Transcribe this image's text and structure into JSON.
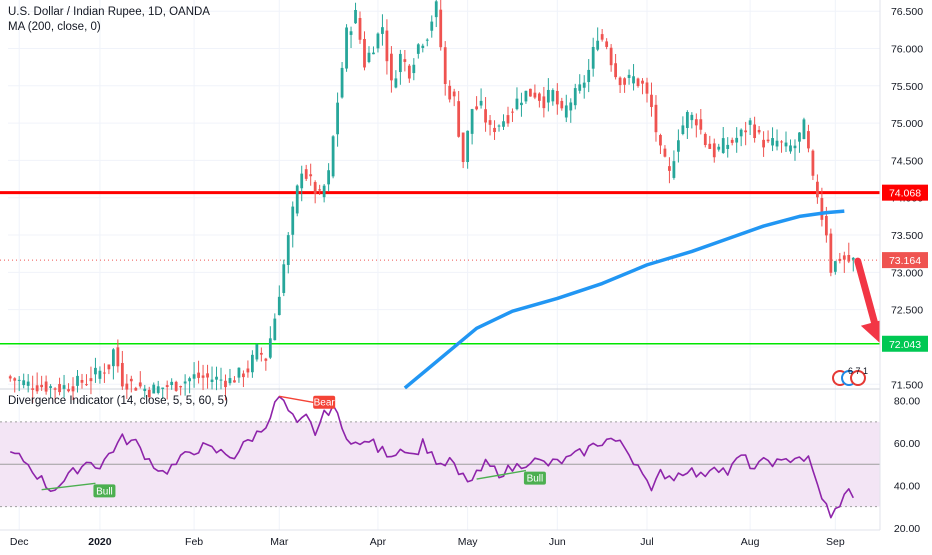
{
  "legend": {
    "symbol_line": "U.S. Dollar / Indian Rupee, 1D, OANDA",
    "ma_line": "MA (200, close, 0)",
    "indicator_line": "Divergence Indicator (14, close, 5, 5, 60, 5)"
  },
  "colors": {
    "bull": "#26a69a",
    "bear": "#ef5350",
    "ma": "#2196f3",
    "resistance": "#ff0000",
    "support": "#00e600",
    "rsi_line": "#8e24aa",
    "rsi_band": "#f3e5f5",
    "bull_tag": "#4caf50",
    "bear_tag": "#f44336",
    "arrow": "#f23645"
  },
  "chart_data": [
    {
      "type": "candlestick",
      "pane": "price",
      "ylim": [
        71.45,
        76.65
      ],
      "y_ticks": [
        "76.500",
        "76.000",
        "75.500",
        "75.000",
        "74.500",
        "74.000",
        "73.500",
        "73.000",
        "72.500",
        "72.000",
        "71.500"
      ],
      "x_labels": [
        {
          "label": "Dec",
          "bar": 2,
          "bold": false
        },
        {
          "label": "2020",
          "bar": 20,
          "bold": true
        },
        {
          "label": "Feb",
          "bar": 41,
          "bold": false
        },
        {
          "label": "Mar",
          "bar": 60,
          "bold": false
        },
        {
          "label": "Apr",
          "bar": 82,
          "bold": false
        },
        {
          "label": "May",
          "bar": 102,
          "bold": false
        },
        {
          "label": "Jun",
          "bar": 122,
          "bold": false
        },
        {
          "label": "Jul",
          "bar": 142,
          "bold": false
        },
        {
          "label": "Aug",
          "bar": 165,
          "bold": false
        },
        {
          "label": "Sep",
          "bar": 184,
          "bold": false
        }
      ],
      "bar_count": 190,
      "keypoints": [
        [
          0,
          71.6
        ],
        [
          5,
          71.5
        ],
        [
          12,
          71.45
        ],
        [
          18,
          71.55
        ],
        [
          23,
          71.75
        ],
        [
          24,
          71.95
        ],
        [
          26,
          71.55
        ],
        [
          32,
          71.42
        ],
        [
          38,
          71.5
        ],
        [
          42,
          71.6
        ],
        [
          50,
          71.55
        ],
        [
          54,
          71.7
        ],
        [
          56,
          71.95
        ],
        [
          58,
          71.85
        ],
        [
          60,
          72.4
        ],
        [
          62,
          73.1
        ],
        [
          64,
          73.8
        ],
        [
          66,
          74.4
        ],
        [
          68,
          74.2
        ],
        [
          70,
          74.0
        ],
        [
          72,
          74.3
        ],
        [
          74,
          75.3
        ],
        [
          76,
          76.2
        ],
        [
          78,
          76.45
        ],
        [
          80,
          75.8
        ],
        [
          82,
          76.05
        ],
        [
          84,
          76.3
        ],
        [
          86,
          75.5
        ],
        [
          88,
          75.9
        ],
        [
          90,
          75.7
        ],
        [
          92,
          76.05
        ],
        [
          94,
          76.2
        ],
        [
          95,
          76.4
        ],
        [
          96,
          76.55
        ],
        [
          98,
          75.5
        ],
        [
          100,
          75.3
        ],
        [
          102,
          74.5
        ],
        [
          104,
          75.2
        ],
        [
          106,
          75.2
        ],
        [
          108,
          74.9
        ],
        [
          110,
          75.0
        ],
        [
          112,
          75.1
        ],
        [
          114,
          75.3
        ],
        [
          116,
          75.4
        ],
        [
          118,
          75.4
        ],
        [
          120,
          75.3
        ],
        [
          122,
          75.4
        ],
        [
          124,
          75.1
        ],
        [
          126,
          75.3
        ],
        [
          128,
          75.45
        ],
        [
          130,
          75.7
        ],
        [
          132,
          76.2
        ],
        [
          134,
          76.05
        ],
        [
          136,
          75.65
        ],
        [
          138,
          75.55
        ],
        [
          140,
          75.6
        ],
        [
          142,
          75.5
        ],
        [
          144,
          75.2
        ],
        [
          146,
          74.6
        ],
        [
          148,
          74.3
        ],
        [
          150,
          74.85
        ],
        [
          152,
          75.1
        ],
        [
          154,
          75.05
        ],
        [
          156,
          74.75
        ],
        [
          158,
          74.6
        ],
        [
          160,
          74.7
        ],
        [
          162,
          74.75
        ],
        [
          164,
          74.85
        ],
        [
          166,
          75.0
        ],
        [
          168,
          74.8
        ],
        [
          170,
          74.7
        ],
        [
          172,
          74.75
        ],
        [
          174,
          74.65
        ],
        [
          176,
          74.7
        ],
        [
          178,
          74.95
        ],
        [
          179,
          74.6
        ],
        [
          180,
          74.2
        ],
        [
          181,
          74.05
        ],
        [
          182,
          73.75
        ],
        [
          183,
          73.55
        ],
        [
          184,
          73.05
        ],
        [
          186,
          73.2
        ],
        [
          188,
          73.15
        ]
      ],
      "moving_average": {
        "name": "MA (200, close, 0)",
        "points": [
          [
            88,
            71.45
          ],
          [
            93,
            71.7
          ],
          [
            98,
            71.95
          ],
          [
            104,
            72.25
          ],
          [
            112,
            72.48
          ],
          [
            122,
            72.65
          ],
          [
            132,
            72.85
          ],
          [
            142,
            73.1
          ],
          [
            152,
            73.28
          ],
          [
            160,
            73.45
          ],
          [
            168,
            73.62
          ],
          [
            176,
            73.75
          ],
          [
            182,
            73.8
          ],
          [
            186,
            73.82
          ]
        ]
      },
      "levels": [
        {
          "name": "resistance",
          "value": 74.068,
          "label": "74.068"
        },
        {
          "name": "last_price",
          "value": 73.164,
          "label": "73.164"
        },
        {
          "name": "support",
          "value": 72.043,
          "label": "72.043"
        }
      ],
      "projection_arrow": {
        "from": [
          189,
          73.15
        ],
        "to": [
          194,
          72.05
        ]
      },
      "event_flags_text": "6 7 1"
    },
    {
      "type": "line",
      "pane": "indicator",
      "ylim": [
        19,
        85
      ],
      "y_ticks": [
        "80.00",
        "60.00",
        "40.00",
        "20.00"
      ],
      "band": {
        "upper": 70,
        "lower": 30,
        "mid": 50
      },
      "keypoints": [
        [
          0,
          55
        ],
        [
          3,
          52
        ],
        [
          6,
          45
        ],
        [
          9,
          38
        ],
        [
          12,
          42
        ],
        [
          15,
          48
        ],
        [
          18,
          52
        ],
        [
          20,
          48
        ],
        [
          22,
          55
        ],
        [
          25,
          62
        ],
        [
          28,
          60
        ],
        [
          31,
          52
        ],
        [
          34,
          46
        ],
        [
          37,
          50
        ],
        [
          40,
          56
        ],
        [
          43,
          58
        ],
        [
          46,
          56
        ],
        [
          50,
          54
        ],
        [
          53,
          61
        ],
        [
          56,
          66
        ],
        [
          58,
          73
        ],
        [
          60,
          82
        ],
        [
          62,
          75
        ],
        [
          64,
          68
        ],
        [
          66,
          72
        ],
        [
          68,
          65
        ],
        [
          70,
          73
        ],
        [
          72,
          78
        ],
        [
          74,
          66
        ],
        [
          76,
          62
        ],
        [
          78,
          58
        ],
        [
          80,
          62
        ],
        [
          82,
          57
        ],
        [
          85,
          55
        ],
        [
          88,
          58
        ],
        [
          90,
          54
        ],
        [
          92,
          60
        ],
        [
          94,
          55
        ],
        [
          96,
          48
        ],
        [
          98,
          52
        ],
        [
          100,
          45
        ],
        [
          103,
          42
        ],
        [
          106,
          50
        ],
        [
          109,
          46
        ],
        [
          112,
          48
        ],
        [
          116,
          52
        ],
        [
          120,
          50
        ],
        [
          124,
          52
        ],
        [
          128,
          56
        ],
        [
          131,
          60
        ],
        [
          134,
          62
        ],
        [
          137,
          58
        ],
        [
          139,
          52
        ],
        [
          141,
          48
        ],
        [
          143,
          36
        ],
        [
          145,
          46
        ],
        [
          148,
          44
        ],
        [
          151,
          48
        ],
        [
          154,
          44
        ],
        [
          157,
          50
        ],
        [
          160,
          46
        ],
        [
          163,
          54
        ],
        [
          166,
          48
        ],
        [
          169,
          52
        ],
        [
          172,
          50
        ],
        [
          175,
          54
        ],
        [
          178,
          52
        ],
        [
          180,
          40
        ],
        [
          182,
          30
        ],
        [
          183,
          24
        ],
        [
          185,
          32
        ],
        [
          187,
          37
        ],
        [
          189,
          35
        ]
      ],
      "signals": [
        {
          "label": "Bull",
          "kind": "bull",
          "from": [
            7,
            38
          ],
          "to": [
            19,
            41
          ]
        },
        {
          "label": "Bear",
          "kind": "bear",
          "from": [
            60,
            82
          ],
          "to": [
            68,
            79
          ]
        },
        {
          "label": "Bull",
          "kind": "bull",
          "from": [
            104,
            43
          ],
          "to": [
            115,
            47
          ]
        }
      ]
    }
  ]
}
